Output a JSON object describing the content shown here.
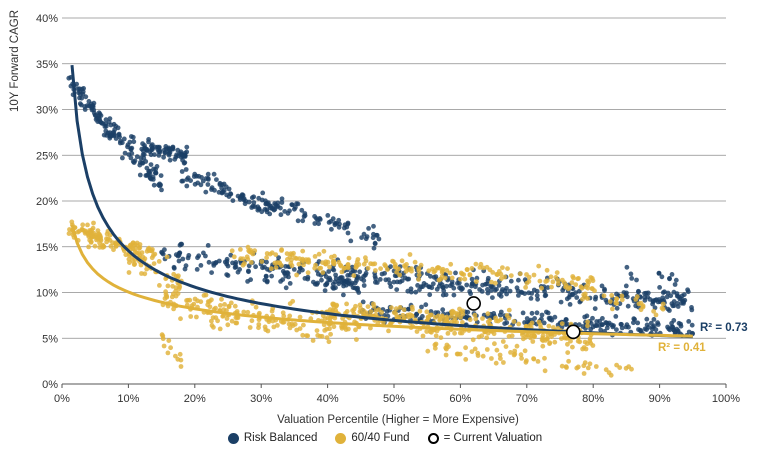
{
  "chart_data": {
    "type": "scatter",
    "ylabel": "10Y Forward CAGR",
    "xlabel": "Valuation Percentile (Higher = More Expensive)",
    "xlim": [
      0,
      100
    ],
    "ylim": [
      0,
      40
    ],
    "x_tick_labels": [
      "0%",
      "10%",
      "20%",
      "30%",
      "40%",
      "50%",
      "60%",
      "70%",
      "80%",
      "90%",
      "100%"
    ],
    "x_tick_values": [
      0,
      10,
      20,
      30,
      40,
      50,
      60,
      70,
      80,
      90,
      100
    ],
    "y_tick_labels": [
      "0%",
      "5%",
      "10%",
      "15%",
      "20%",
      "25%",
      "30%",
      "35%",
      "40%"
    ],
    "y_tick_values": [
      0,
      5,
      10,
      15,
      20,
      25,
      30,
      35,
      40
    ],
    "grid": "horizontal",
    "series": [
      {
        "name": "Risk Balanced",
        "color": "#1b3f66",
        "trend": {
          "type": "power",
          "a": 42.0,
          "b": -0.46,
          "x_range": [
            1.5,
            95
          ]
        },
        "r2_label": "R² = 0.73",
        "clusters": [
          {
            "x": [
              1,
              8
            ],
            "y_start": 33,
            "y_end": 27,
            "spread": 1.3,
            "n": 70
          },
          {
            "x": [
              7,
              15
            ],
            "y_start": 28,
            "y_end": 22,
            "spread": 1.8,
            "n": 70
          },
          {
            "x": [
              12,
              19
            ],
            "y_start": 26,
            "y_end": 25,
            "spread": 1.0,
            "n": 70
          },
          {
            "x": [
              18,
              32
            ],
            "y_start": 23,
            "y_end": 19,
            "spread": 1.2,
            "n": 80
          },
          {
            "x": [
              30,
              48
            ],
            "y_start": 20,
            "y_end": 16,
            "spread": 1.3,
            "n": 70
          },
          {
            "x": [
              15,
              45
            ],
            "y_start": 14,
            "y_end": 11,
            "spread": 1.8,
            "n": 160
          },
          {
            "x": [
              40,
              95
            ],
            "y_start": 12,
            "y_end": 9,
            "spread": 1.6,
            "n": 300
          },
          {
            "x": [
              45,
              95
            ],
            "y_start": 8,
            "y_end": 6,
            "spread": 1.3,
            "n": 230
          },
          {
            "x": [
              85,
              93
            ],
            "y_start": 12,
            "y_end": 11.5,
            "spread": 0.8,
            "n": 12
          }
        ],
        "current_valuation": {
          "x": 62,
          "y": 8.8
        }
      },
      {
        "name": "60/40 Fund",
        "color": "#e0b23a",
        "trend": {
          "type": "power",
          "a": 19.6,
          "b": -0.29,
          "x_range": [
            1.5,
            95
          ]
        },
        "r2_label": "R² = 0.41",
        "clusters": [
          {
            "x": [
              1,
              14
            ],
            "y_start": 17,
            "y_end": 14,
            "spread": 1.2,
            "n": 120
          },
          {
            "x": [
              10,
              18
            ],
            "y_start": 14,
            "y_end": 11,
            "spread": 1.8,
            "n": 50
          },
          {
            "x": [
              15,
              18
            ],
            "y_start": 5,
            "y_end": 2,
            "spread": 1.4,
            "n": 12
          },
          {
            "x": [
              15,
              45
            ],
            "y_start": 9,
            "y_end": 6,
            "spread": 2.0,
            "n": 170
          },
          {
            "x": [
              25,
              80
            ],
            "y_start": 14,
            "y_end": 11,
            "spread": 1.4,
            "n": 220
          },
          {
            "x": [
              40,
              80
            ],
            "y_start": 8,
            "y_end": 5,
            "spread": 1.8,
            "n": 320
          },
          {
            "x": [
              55,
              86
            ],
            "y_start": 4,
            "y_end": 1.5,
            "spread": 1.2,
            "n": 60
          },
          {
            "x": [
              78,
              92
            ],
            "y_start": 10,
            "y_end": 8,
            "spread": 1.0,
            "n": 30
          }
        ],
        "current_valuation": {
          "x": 77,
          "y": 5.7
        }
      }
    ],
    "legend": {
      "placement": "bottom",
      "items": [
        "Risk Balanced",
        "60/40 Fund",
        "= Current Valuation"
      ]
    }
  }
}
